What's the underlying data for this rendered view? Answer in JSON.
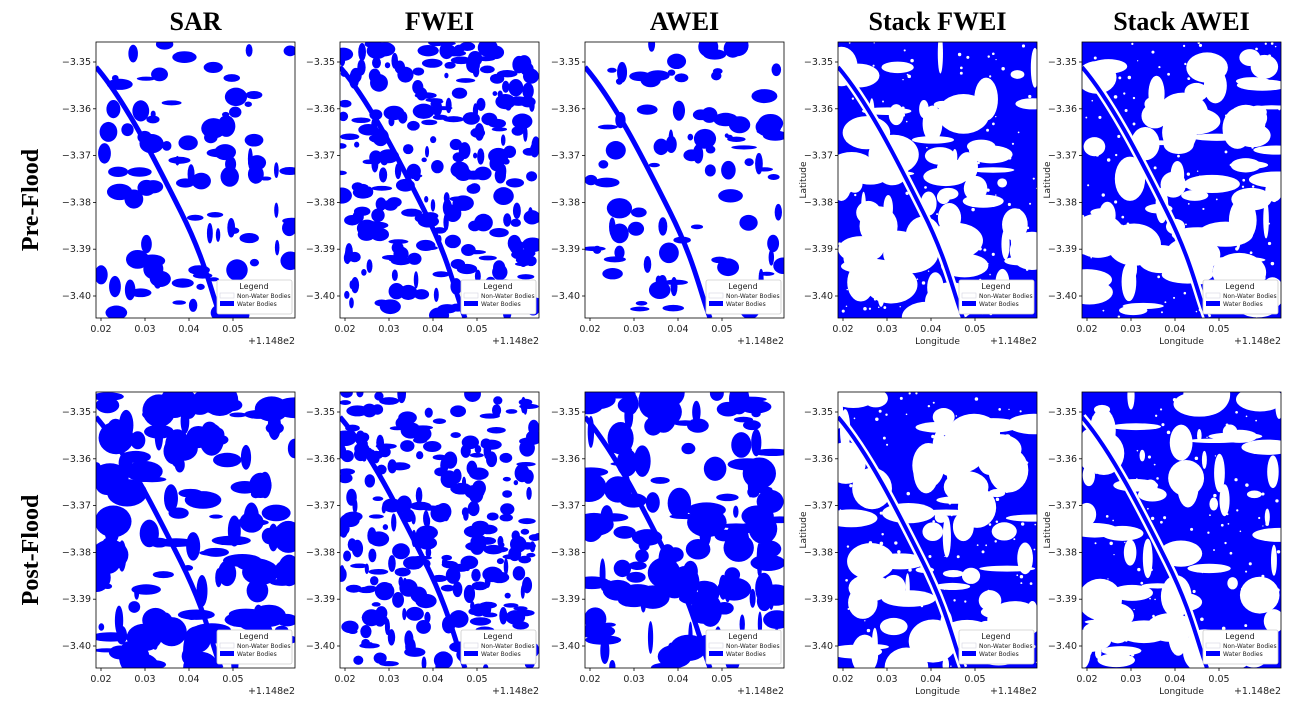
{
  "columns": [
    {
      "title": "SAR"
    },
    {
      "title": "FWEI"
    },
    {
      "title": "AWEI"
    },
    {
      "title": "Stack FWEI",
      "axis_labels": true
    },
    {
      "title": "Stack AWEI",
      "axis_labels": true
    }
  ],
  "rows": [
    {
      "label": "Pre-Flood"
    },
    {
      "label": "Post-Flood"
    }
  ],
  "axes": {
    "yticks": [
      "−3.35",
      "−3.36",
      "−3.37",
      "−3.38",
      "−3.39",
      "−3.40"
    ],
    "xticks": [
      "0.02",
      "0.03",
      "0.04",
      "0.05"
    ],
    "x_offset": "+1.148e2",
    "xlabel": "Longitude",
    "ylabel": "Latitude"
  },
  "legend": {
    "title": "Legend",
    "items": [
      "Non-Water Bodies",
      "Water Bodies"
    ]
  }
}
